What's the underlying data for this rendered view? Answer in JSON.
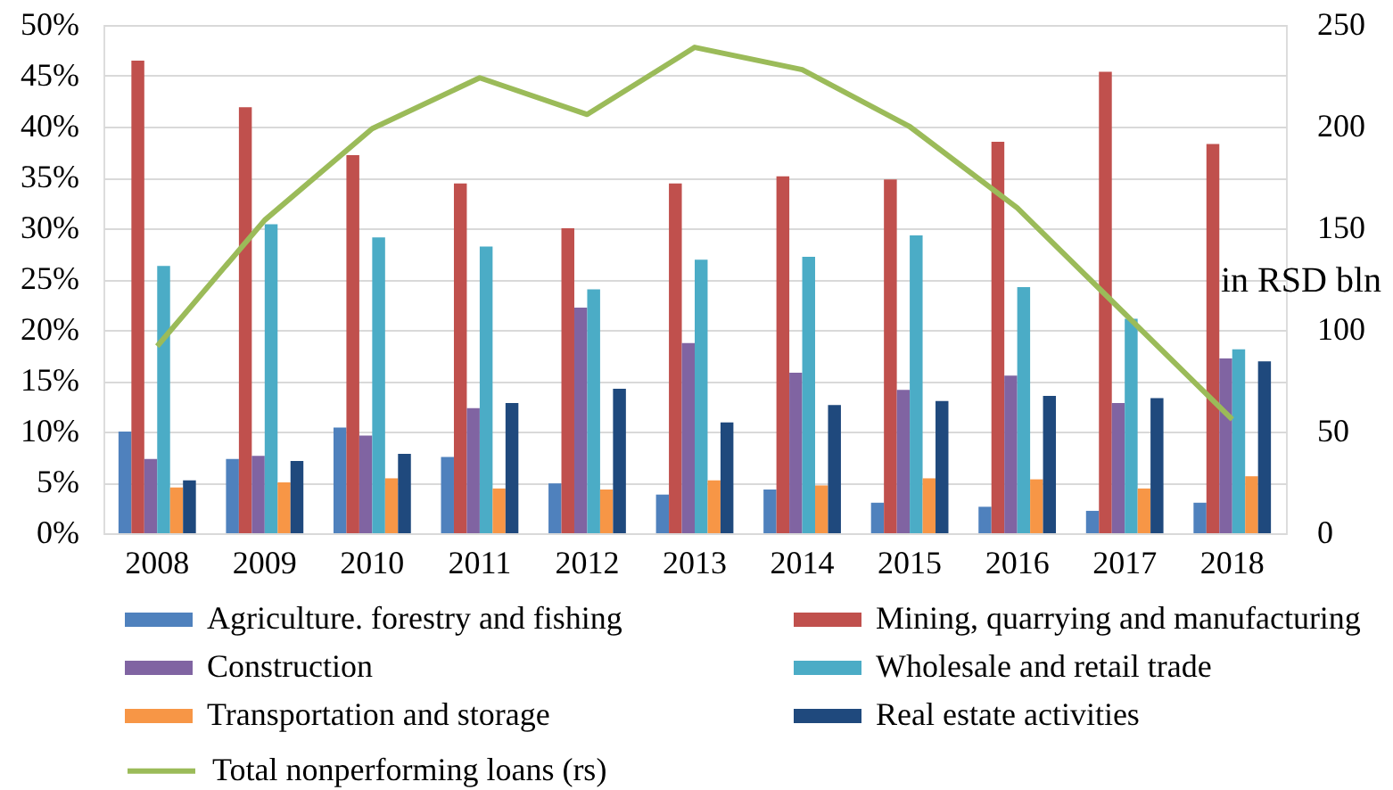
{
  "chart_data": {
    "type": "bar",
    "categories": [
      "2008",
      "2009",
      "2010",
      "2011",
      "2012",
      "2013",
      "2014",
      "2015",
      "2016",
      "2017",
      "2018"
    ],
    "series": [
      {
        "name": "Agriculture. forestry and fishing",
        "color": "#4f81bd",
        "values": [
          10.0,
          7.3,
          10.4,
          7.5,
          4.9,
          3.8,
          4.3,
          3.0,
          2.6,
          2.2,
          3.0
        ]
      },
      {
        "name": "Mining, quarrying and manufacturing",
        "color": "#c0504d",
        "values": [
          46.5,
          41.9,
          37.2,
          34.4,
          30.0,
          34.4,
          35.1,
          34.8,
          38.5,
          45.4,
          38.3
        ]
      },
      {
        "name": "Construction",
        "color": "#8064a2",
        "values": [
          7.3,
          7.6,
          9.6,
          12.3,
          22.2,
          18.7,
          15.8,
          14.1,
          15.5,
          12.8,
          17.2
        ]
      },
      {
        "name": "Wholesale and retail trade",
        "color": "#4bacc6",
        "values": [
          26.3,
          30.4,
          29.1,
          28.2,
          24.0,
          26.9,
          27.2,
          29.3,
          24.2,
          21.1,
          18.1
        ]
      },
      {
        "name": "Transportation and storage",
        "color": "#f79646",
        "values": [
          4.5,
          5.0,
          5.4,
          4.4,
          4.3,
          5.2,
          4.7,
          5.4,
          5.3,
          4.4,
          5.6
        ]
      },
      {
        "name": "Real estate activities",
        "color": "#1f497d",
        "values": [
          5.2,
          7.1,
          7.8,
          12.8,
          14.2,
          10.9,
          12.6,
          13.0,
          13.5,
          13.3,
          16.9
        ]
      },
      {
        "name": "Total nonperforming loans (rs)",
        "color": "#9bbb59",
        "type": "line",
        "axis": "y2",
        "values": [
          92,
          154,
          199,
          224,
          206,
          239,
          228,
          200,
          160,
          108,
          56
        ]
      }
    ],
    "ylim": [
      0,
      50
    ],
    "yticks": [
      {
        "value": 0,
        "label": "0%"
      },
      {
        "value": 5,
        "label": "5%"
      },
      {
        "value": 10,
        "label": "10%"
      },
      {
        "value": 15,
        "label": "15%"
      },
      {
        "value": 20,
        "label": "20%"
      },
      {
        "value": 25,
        "label": "25%"
      },
      {
        "value": 30,
        "label": "30%"
      },
      {
        "value": 35,
        "label": "35%"
      },
      {
        "value": 40,
        "label": "40%"
      },
      {
        "value": 45,
        "label": "45%"
      },
      {
        "value": 50,
        "label": "50%"
      }
    ],
    "y2lim": [
      0,
      250
    ],
    "y2ticks": [
      0,
      50,
      100,
      150,
      200,
      250
    ],
    "y2label": "in RSD bln",
    "grid": "y",
    "legend": "bottom"
  }
}
